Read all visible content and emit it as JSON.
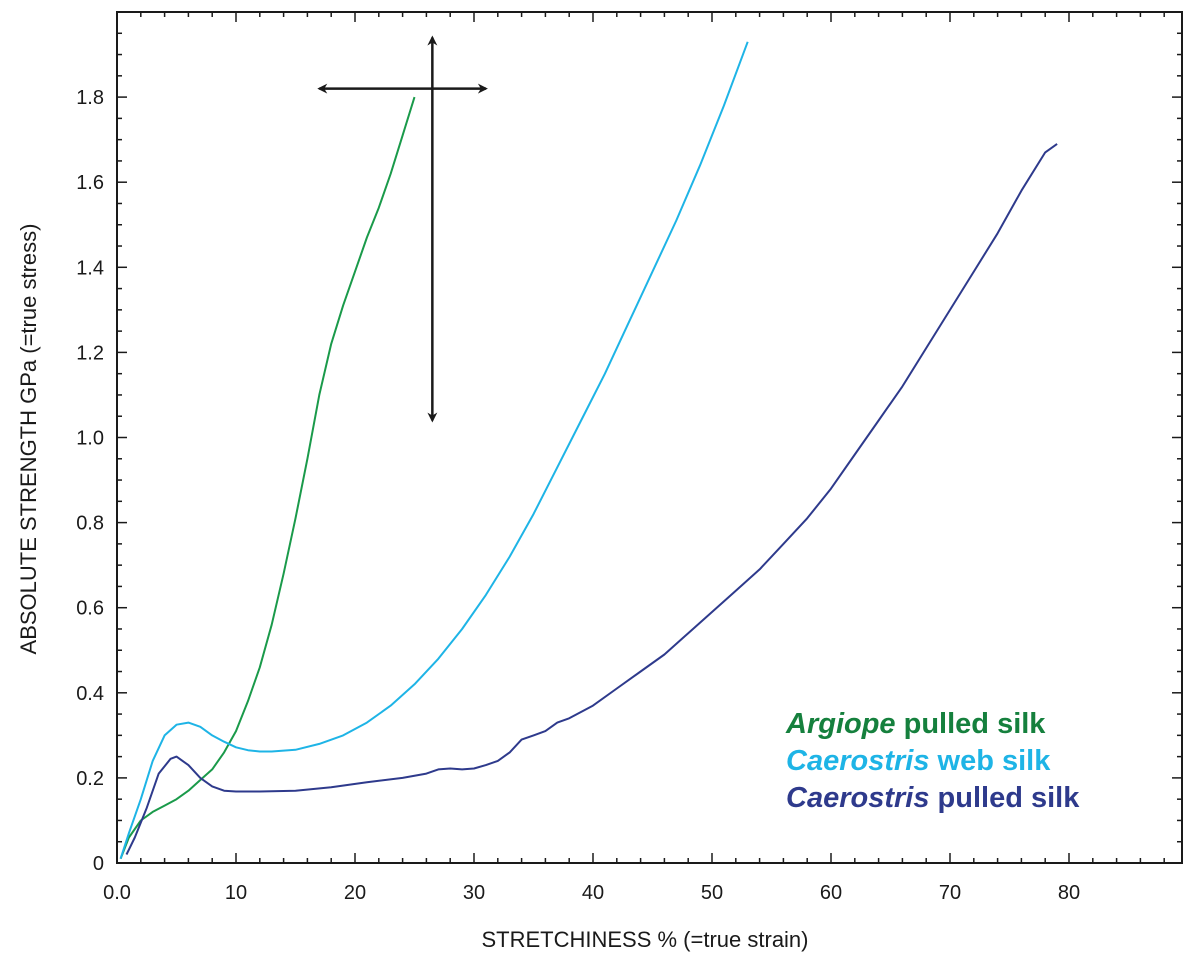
{
  "chart_data": {
    "type": "line",
    "xlabel": "STRETCHINESS % (=true strain)",
    "ylabel": "ABSOLUTE STRENGTH  GPa (=true stress)",
    "xlim": [
      0,
      90
    ],
    "ylim": [
      0,
      2.0
    ],
    "x_ticks": [
      {
        "value": 0,
        "label": "0.0"
      },
      {
        "value": 10,
        "label": "10"
      },
      {
        "value": 20,
        "label": "20"
      },
      {
        "value": 30,
        "label": "30"
      },
      {
        "value": 40,
        "label": "40"
      },
      {
        "value": 50,
        "label": "50"
      },
      {
        "value": 60,
        "label": "60"
      },
      {
        "value": 70,
        "label": "70"
      },
      {
        "value": 80,
        "label": "80"
      }
    ],
    "y_ticks": [
      {
        "value": 0,
        "label": "0"
      },
      {
        "value": 0.2,
        "label": "0.2"
      },
      {
        "value": 0.4,
        "label": "0.4"
      },
      {
        "value": 0.6,
        "label": "0.6"
      },
      {
        "value": 0.8,
        "label": "0.8"
      },
      {
        "value": 1.0,
        "label": "1.0"
      },
      {
        "value": 1.2,
        "label": "1.2"
      },
      {
        "value": 1.4,
        "label": "1.4"
      },
      {
        "value": 1.6,
        "label": "1.6"
      },
      {
        "value": 1.8,
        "label": "1.8"
      }
    ],
    "grid": false,
    "legend_position": "bottom-right",
    "series": [
      {
        "name_italic": "Argiope",
        "name_rest": " pulled silk",
        "color": "#1a9a4a",
        "legend_color": "#15803d",
        "x": [
          0.3,
          1,
          2,
          3,
          4,
          5,
          6,
          7,
          8,
          9,
          10,
          11,
          12,
          13,
          14,
          15,
          16,
          17,
          18,
          19,
          20,
          21,
          22,
          23,
          24,
          25
        ],
        "y": [
          0.01,
          0.06,
          0.1,
          0.12,
          0.135,
          0.15,
          0.17,
          0.195,
          0.22,
          0.26,
          0.31,
          0.38,
          0.46,
          0.56,
          0.68,
          0.81,
          0.95,
          1.1,
          1.22,
          1.31,
          1.39,
          1.47,
          1.54,
          1.62,
          1.71,
          1.8
        ]
      },
      {
        "name_italic": "Caerostris",
        "name_rest": " web silk",
        "color": "#1eb4e6",
        "legend_color": "#1eb4e6",
        "x": [
          0.3,
          1,
          2,
          3,
          4,
          5,
          6,
          7,
          8,
          9,
          10,
          11,
          12,
          13,
          15,
          17,
          19,
          21,
          23,
          25,
          27,
          29,
          31,
          33,
          35,
          37,
          39,
          41,
          43,
          45,
          47,
          49,
          51,
          53
        ],
        "y": [
          0.01,
          0.07,
          0.15,
          0.24,
          0.3,
          0.325,
          0.33,
          0.32,
          0.3,
          0.285,
          0.272,
          0.265,
          0.262,
          0.262,
          0.266,
          0.28,
          0.3,
          0.33,
          0.37,
          0.42,
          0.48,
          0.55,
          0.63,
          0.72,
          0.82,
          0.93,
          1.04,
          1.15,
          1.27,
          1.39,
          1.51,
          1.64,
          1.78,
          1.93
        ]
      },
      {
        "name_italic": "Caerostris",
        "name_rest": " pulled silk",
        "color": "#2e3a8c",
        "legend_color": "#2e3a8c",
        "x": [
          0.8,
          1.5,
          2.5,
          3.5,
          4.5,
          5,
          6,
          7,
          8,
          9,
          10,
          12,
          15,
          18,
          21,
          24,
          26,
          27,
          28,
          29,
          30,
          31,
          32,
          33,
          34,
          35,
          36,
          37,
          38,
          40,
          42,
          44,
          46,
          48,
          50,
          52,
          54,
          56,
          58,
          60,
          62,
          64,
          66,
          68,
          70,
          72,
          74,
          76,
          78,
          79
        ],
        "y": [
          0.02,
          0.06,
          0.13,
          0.21,
          0.245,
          0.25,
          0.23,
          0.2,
          0.18,
          0.17,
          0.168,
          0.168,
          0.17,
          0.178,
          0.19,
          0.2,
          0.21,
          0.22,
          0.222,
          0.22,
          0.222,
          0.23,
          0.24,
          0.26,
          0.29,
          0.3,
          0.31,
          0.33,
          0.34,
          0.37,
          0.41,
          0.45,
          0.49,
          0.54,
          0.59,
          0.64,
          0.69,
          0.75,
          0.81,
          0.88,
          0.96,
          1.04,
          1.12,
          1.21,
          1.3,
          1.39,
          1.48,
          1.58,
          1.67,
          1.69
        ]
      }
    ],
    "annotations": [
      {
        "type": "double-arrow-cross",
        "color": "#1a1a1a",
        "horizontal": {
          "x_from": 17,
          "x_to": 31,
          "y": 1.82
        },
        "vertical": {
          "x": 26.5,
          "y_from": 1.04,
          "y_to": 1.94
        }
      }
    ]
  }
}
